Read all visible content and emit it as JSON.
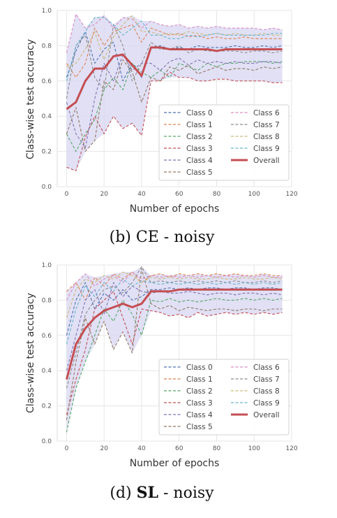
{
  "chart_data": [
    {
      "type": "line",
      "caption_prefix": "(b) ",
      "caption_bold": "CE",
      "caption_suffix": " - noisy",
      "xlabel": "Number of epochs",
      "ylabel": "Class-wise test accuracy",
      "xlim": [
        -5,
        120
      ],
      "ylim": [
        0,
        1.0
      ],
      "xticks": [
        "0",
        "20",
        "40",
        "60",
        "80",
        "100",
        "120"
      ],
      "yticks": [
        "0.0",
        "0.2",
        "0.4",
        "0.6",
        "0.8",
        "1.0"
      ],
      "x": [
        0,
        5,
        10,
        15,
        20,
        25,
        30,
        35,
        40,
        45,
        50,
        55,
        60,
        65,
        70,
        75,
        80,
        85,
        90,
        95,
        100,
        105,
        110,
        115
      ],
      "grid": true,
      "band_color": "#d7d5f2",
      "series": [
        {
          "name": "Class 0",
          "color": "#4c72b0",
          "values": [
            0.62,
            0.77,
            0.88,
            0.7,
            0.78,
            0.82,
            0.6,
            0.7,
            0.62,
            0.79,
            0.8,
            0.78,
            0.79,
            0.78,
            0.8,
            0.79,
            0.79,
            0.79,
            0.8,
            0.79,
            0.79,
            0.8,
            0.79,
            0.8
          ]
        },
        {
          "name": "Class 1",
          "color": "#dd8452",
          "values": [
            0.7,
            0.62,
            0.7,
            0.9,
            0.8,
            0.88,
            0.9,
            0.92,
            0.82,
            0.9,
            0.88,
            0.86,
            0.87,
            0.85,
            0.86,
            0.84,
            0.85,
            0.84,
            0.84,
            0.85,
            0.84,
            0.84,
            0.84,
            0.84
          ]
        },
        {
          "name": "Class 2",
          "color": "#55a868",
          "values": [
            0.3,
            0.2,
            0.3,
            0.38,
            0.55,
            0.62,
            0.55,
            0.7,
            0.65,
            0.62,
            0.66,
            0.62,
            0.7,
            0.68,
            0.66,
            0.7,
            0.68,
            0.7,
            0.7,
            0.71,
            0.71,
            0.71,
            0.7,
            0.71
          ]
        },
        {
          "name": "Class 3",
          "color": "#c44e52",
          "values": [
            0.11,
            0.09,
            0.28,
            0.4,
            0.3,
            0.4,
            0.33,
            0.36,
            0.29,
            0.6,
            0.6,
            0.65,
            0.62,
            0.62,
            0.6,
            0.6,
            0.61,
            0.61,
            0.6,
            0.6,
            0.6,
            0.6,
            0.59,
            0.59
          ]
        },
        {
          "name": "Class 4",
          "color": "#8172b3",
          "values": [
            0.48,
            0.3,
            0.22,
            0.5,
            0.7,
            0.6,
            0.75,
            0.66,
            0.7,
            0.7,
            0.66,
            0.71,
            0.73,
            0.69,
            0.72,
            0.7,
            0.71,
            0.7,
            0.71,
            0.7,
            0.7,
            0.71,
            0.71,
            0.7
          ]
        },
        {
          "name": "Class 5",
          "color": "#937860",
          "values": [
            0.3,
            0.45,
            0.2,
            0.26,
            0.6,
            0.55,
            0.72,
            0.65,
            0.48,
            0.62,
            0.6,
            0.68,
            0.66,
            0.69,
            0.64,
            0.66,
            0.68,
            0.66,
            0.67,
            0.67,
            0.66,
            0.68,
            0.67,
            0.68
          ]
        },
        {
          "name": "Class 6",
          "color": "#da8bc3",
          "values": [
            0.76,
            0.98,
            0.9,
            0.92,
            0.97,
            0.9,
            0.96,
            0.95,
            0.9,
            0.94,
            0.92,
            0.91,
            0.92,
            0.9,
            0.91,
            0.9,
            0.91,
            0.9,
            0.9,
            0.9,
            0.9,
            0.89,
            0.9,
            0.89
          ]
        },
        {
          "name": "Class 7",
          "color": "#8c8c8c",
          "values": [
            0.5,
            0.8,
            0.86,
            0.62,
            0.55,
            0.92,
            0.8,
            0.6,
            0.7,
            0.82,
            0.78,
            0.78,
            0.8,
            0.76,
            0.78,
            0.77,
            0.77,
            0.77,
            0.77,
            0.76,
            0.77,
            0.77,
            0.76,
            0.77
          ]
        },
        {
          "name": "Class 8",
          "color": "#ccb974",
          "values": [
            0.68,
            0.7,
            0.78,
            0.88,
            0.72,
            0.85,
            0.92,
            0.97,
            0.88,
            0.88,
            0.86,
            0.87,
            0.86,
            0.88,
            0.87,
            0.86,
            0.87,
            0.86,
            0.87,
            0.86,
            0.86,
            0.87,
            0.86,
            0.86
          ]
        },
        {
          "name": "Class 9",
          "color": "#64b5cd",
          "values": [
            0.6,
            0.8,
            0.88,
            0.96,
            0.96,
            0.92,
            0.86,
            0.9,
            0.94,
            0.86,
            0.86,
            0.84,
            0.84,
            0.86,
            0.85,
            0.86,
            0.87,
            0.86,
            0.86,
            0.86,
            0.86,
            0.86,
            0.87,
            0.87
          ]
        },
        {
          "name": "Overall",
          "color": "#c44e52",
          "values": [
            0.44,
            0.48,
            0.6,
            0.67,
            0.67,
            0.74,
            0.75,
            0.69,
            0.63,
            0.79,
            0.79,
            0.78,
            0.78,
            0.78,
            0.78,
            0.78,
            0.77,
            0.78,
            0.78,
            0.78,
            0.78,
            0.78,
            0.78,
            0.78
          ]
        }
      ]
    },
    {
      "type": "line",
      "caption_prefix": "(d) ",
      "caption_bold": "SL",
      "caption_suffix": " - noisy",
      "xlabel": "Number of epochs",
      "ylabel": "Class-wise test accuracy",
      "xlim": [
        -5,
        120
      ],
      "ylim": [
        0,
        1.0
      ],
      "xticks": [
        "0",
        "20",
        "40",
        "60",
        "80",
        "100",
        "120"
      ],
      "yticks": [
        "0.0",
        "0.2",
        "0.4",
        "0.6",
        "0.8",
        "1.0"
      ],
      "x": [
        0,
        5,
        10,
        15,
        20,
        25,
        30,
        35,
        40,
        45,
        50,
        55,
        60,
        65,
        70,
        75,
        80,
        85,
        90,
        95,
        100,
        105,
        110,
        115
      ],
      "grid": true,
      "band_color": "#d7d5f2",
      "series": [
        {
          "name": "Class 0",
          "color": "#4c72b0",
          "values": [
            0.6,
            0.8,
            0.9,
            0.75,
            0.84,
            0.8,
            0.86,
            0.8,
            0.82,
            0.86,
            0.86,
            0.87,
            0.86,
            0.87,
            0.86,
            0.87,
            0.87,
            0.86,
            0.87,
            0.87,
            0.86,
            0.87,
            0.87,
            0.86
          ]
        },
        {
          "name": "Class 1",
          "color": "#dd8452",
          "values": [
            0.85,
            0.9,
            0.8,
            0.93,
            0.88,
            0.95,
            0.92,
            0.96,
            0.9,
            0.94,
            0.95,
            0.93,
            0.95,
            0.94,
            0.95,
            0.94,
            0.95,
            0.94,
            0.95,
            0.94,
            0.94,
            0.95,
            0.94,
            0.94
          ]
        },
        {
          "name": "Class 2",
          "color": "#55a868",
          "values": [
            0.05,
            0.3,
            0.45,
            0.6,
            0.75,
            0.68,
            0.8,
            0.72,
            0.6,
            0.8,
            0.79,
            0.81,
            0.79,
            0.8,
            0.79,
            0.8,
            0.81,
            0.8,
            0.8,
            0.81,
            0.8,
            0.81,
            0.8,
            0.81
          ]
        },
        {
          "name": "Class 3",
          "color": "#c44e52",
          "values": [
            0.15,
            0.35,
            0.52,
            0.75,
            0.8,
            0.85,
            0.7,
            0.55,
            0.75,
            0.74,
            0.73,
            0.71,
            0.72,
            0.7,
            0.73,
            0.71,
            0.72,
            0.73,
            0.72,
            0.73,
            0.72,
            0.73,
            0.72,
            0.73
          ]
        },
        {
          "name": "Class 4",
          "color": "#8172b3",
          "values": [
            0.4,
            0.6,
            0.8,
            0.86,
            0.72,
            0.9,
            0.82,
            0.88,
            0.85,
            0.84,
            0.85,
            0.84,
            0.84,
            0.85,
            0.84,
            0.83,
            0.84,
            0.84,
            0.83,
            0.84,
            0.84,
            0.83,
            0.84,
            0.83
          ]
        },
        {
          "name": "Class 5",
          "color": "#937860",
          "values": [
            0.12,
            0.45,
            0.7,
            0.55,
            0.68,
            0.52,
            0.62,
            0.5,
            0.98,
            0.78,
            0.75,
            0.77,
            0.74,
            0.76,
            0.75,
            0.74,
            0.75,
            0.75,
            0.74,
            0.75,
            0.75,
            0.74,
            0.75,
            0.75
          ]
        },
        {
          "name": "Class 6",
          "color": "#da8bc3",
          "values": [
            0.8,
            0.9,
            0.95,
            0.88,
            0.92,
            0.94,
            0.9,
            0.96,
            0.92,
            0.94,
            0.93,
            0.94,
            0.93,
            0.94,
            0.93,
            0.94,
            0.93,
            0.94,
            0.93,
            0.94,
            0.93,
            0.94,
            0.93,
            0.93
          ]
        },
        {
          "name": "Class 7",
          "color": "#8c8c8c",
          "values": [
            0.3,
            0.5,
            0.72,
            0.8,
            0.86,
            0.88,
            0.84,
            0.9,
            0.99,
            0.9,
            0.91,
            0.9,
            0.91,
            0.9,
            0.91,
            0.9,
            0.91,
            0.9,
            0.91,
            0.9,
            0.9,
            0.91,
            0.9,
            0.91
          ]
        },
        {
          "name": "Class 8",
          "color": "#ccb974",
          "values": [
            0.7,
            0.86,
            0.92,
            0.9,
            0.94,
            0.92,
            0.96,
            0.94,
            0.9,
            0.93,
            0.92,
            0.93,
            0.92,
            0.93,
            0.92,
            0.92,
            0.93,
            0.92,
            0.92,
            0.93,
            0.92,
            0.92,
            0.93,
            0.92
          ]
        },
        {
          "name": "Class 9",
          "color": "#64b5cd",
          "values": [
            0.55,
            0.75,
            0.88,
            0.82,
            0.9,
            0.85,
            0.92,
            0.88,
            0.91,
            0.9,
            0.89,
            0.9,
            0.89,
            0.9,
            0.89,
            0.9,
            0.89,
            0.9,
            0.89,
            0.9,
            0.89,
            0.9,
            0.89,
            0.9
          ]
        },
        {
          "name": "Overall",
          "color": "#c44e52",
          "values": [
            0.35,
            0.55,
            0.64,
            0.7,
            0.74,
            0.76,
            0.78,
            0.76,
            0.78,
            0.85,
            0.85,
            0.85,
            0.86,
            0.86,
            0.86,
            0.86,
            0.86,
            0.86,
            0.86,
            0.86,
            0.86,
            0.86,
            0.86,
            0.86
          ]
        }
      ]
    }
  ]
}
